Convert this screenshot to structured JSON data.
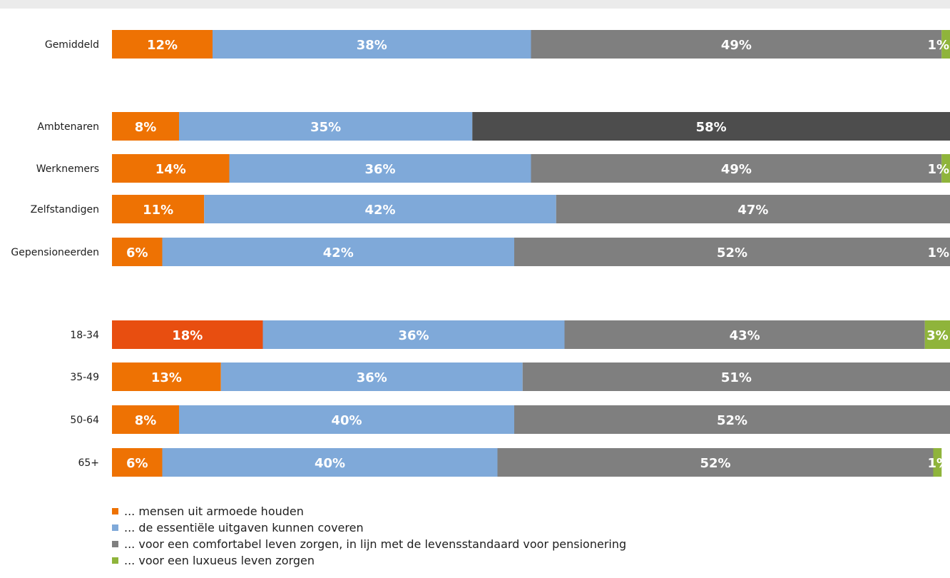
{
  "chart_data": {
    "type": "bar",
    "orientation": "horizontal",
    "stacked": true,
    "xlim": [
      0,
      100
    ],
    "categories": [
      "Gemiddeld",
      "Ambtenaren",
      "Werknemers",
      "Zelfstandigen",
      "Gepensioneerden",
      "18-34",
      "35-49",
      "50-64",
      "65+"
    ],
    "groups": [
      [
        "Gemiddeld"
      ],
      [
        "Ambtenaren",
        "Werknemers",
        "Zelfstandigen",
        "Gepensioneerden"
      ],
      [
        "18-34",
        "35-49",
        "50-64",
        "65+"
      ]
    ],
    "series": [
      {
        "name": "... mensen uit armoede houden",
        "color": "#ee7203",
        "values": [
          12,
          8,
          14,
          11,
          6,
          18,
          13,
          8,
          6
        ]
      },
      {
        "name": "... de essentiële uitgaven kunnen coveren",
        "color": "#7fa9d9",
        "values": [
          38,
          35,
          36,
          42,
          42,
          36,
          36,
          40,
          40
        ]
      },
      {
        "name": "... voor een comfortabel leven zorgen, in lijn met de levensstandaard voor pensionering",
        "color": "#7f7f7f",
        "values": [
          49,
          58,
          49,
          47,
          52,
          43,
          51,
          52,
          52
        ]
      },
      {
        "name": "... voor een luxueus leven zorgen",
        "color": "#8fb43b",
        "values": [
          1,
          null,
          1,
          null,
          1,
          3,
          null,
          null,
          1
        ]
      }
    ],
    "highlight_colors": {
      "18-34|0": "#e84e10",
      "Ambtenaren|2": "#4d4d4d"
    }
  }
}
